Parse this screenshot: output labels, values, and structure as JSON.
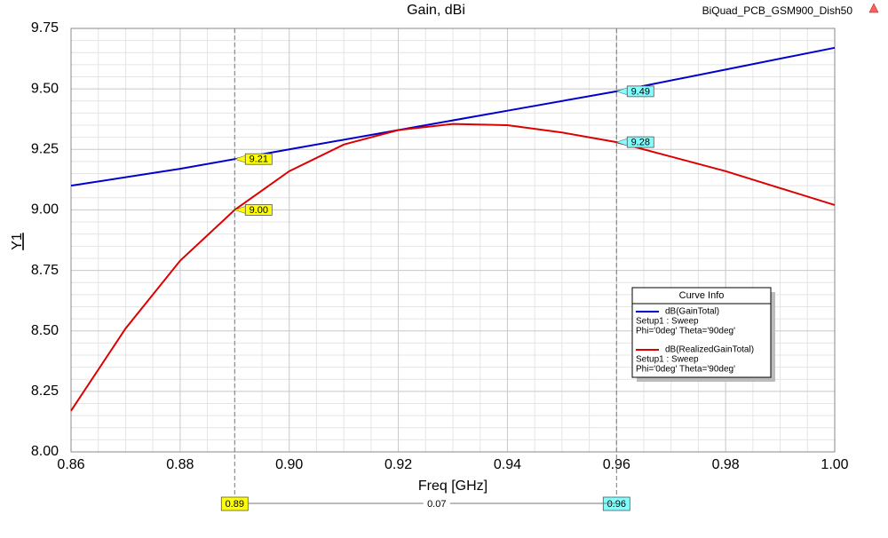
{
  "chart_data": {
    "type": "line",
    "title": "Gain, dBi",
    "project": "BiQuad_PCB_GSM900_Dish50",
    "xlabel": "Freq [GHz]",
    "ylabel": "Y1",
    "xlim": [
      0.86,
      1.0
    ],
    "ylim": [
      8.0,
      9.75
    ],
    "xticks": [
      0.86,
      0.88,
      {
        "value": 0.9,
        "label": "0.90"
      },
      0.92,
      0.94,
      0.96,
      0.98,
      {
        "value": 1.0,
        "label": "1.00"
      }
    ],
    "yticks": [
      {
        "value": 8.0,
        "label": "8.00"
      },
      8.25,
      {
        "value": 8.5,
        "label": "8.50"
      },
      8.75,
      {
        "value": 9.0,
        "label": "9.00"
      },
      9.25,
      {
        "value": 9.5,
        "label": "9.50"
      },
      9.75
    ],
    "grid": true,
    "legend_title": "Curve Info",
    "series": [
      {
        "name": "dB(GainTotal)",
        "color": "#0000cc",
        "info": [
          "Setup1 : Sweep",
          "Phi='0deg' Theta='90deg'"
        ],
        "x": [
          0.86,
          0.88,
          0.89,
          0.9,
          0.92,
          0.94,
          0.96,
          0.98,
          1.0
        ],
        "values": [
          9.1,
          9.17,
          9.21,
          9.25,
          9.33,
          9.41,
          9.49,
          9.58,
          9.67
        ]
      },
      {
        "name": "dB(RealizedGainTotal)",
        "color": "#dd0000",
        "info": [
          "Setup1 : Sweep",
          "Phi='0deg' Theta='90deg'"
        ],
        "x": [
          0.86,
          0.87,
          0.88,
          0.89,
          0.9,
          0.91,
          0.92,
          0.93,
          0.94,
          0.95,
          0.96,
          0.97,
          0.98,
          0.99,
          1.0
        ],
        "values": [
          8.17,
          8.51,
          8.79,
          9.0,
          9.16,
          9.27,
          9.33,
          9.355,
          9.35,
          9.32,
          9.28,
          9.22,
          9.16,
          9.09,
          9.02
        ]
      }
    ],
    "markers": [
      {
        "x": 0.89,
        "color": "#ffff00",
        "values": [
          9.21,
          9.0
        ],
        "value_labels": [
          "9.21",
          "9.00"
        ]
      },
      {
        "x": 0.96,
        "color": "#80ffff",
        "values": [
          9.49,
          9.28
        ],
        "value_labels": [
          "9.49",
          "9.28"
        ]
      }
    ],
    "marker_delta": 0.07
  }
}
